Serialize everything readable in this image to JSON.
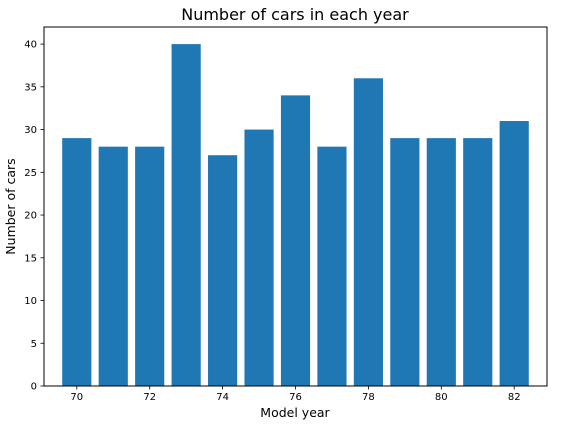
{
  "chart_data": {
    "type": "bar",
    "title": "Number of cars in each year",
    "xlabel": "Model year",
    "ylabel": "Number of cars",
    "x": [
      70,
      71,
      72,
      73,
      74,
      75,
      76,
      77,
      78,
      79,
      80,
      81,
      82
    ],
    "values": [
      29,
      28,
      28,
      40,
      27,
      30,
      34,
      28,
      36,
      29,
      29,
      29,
      31
    ],
    "xlim": [
      69.1,
      82.9
    ],
    "ylim": [
      0,
      42
    ],
    "xticks": [
      70,
      72,
      74,
      76,
      78,
      80,
      82
    ],
    "yticks": [
      0,
      5,
      10,
      15,
      20,
      25,
      30,
      35,
      40
    ],
    "grid": false,
    "bar_color": "#1f77b4"
  }
}
